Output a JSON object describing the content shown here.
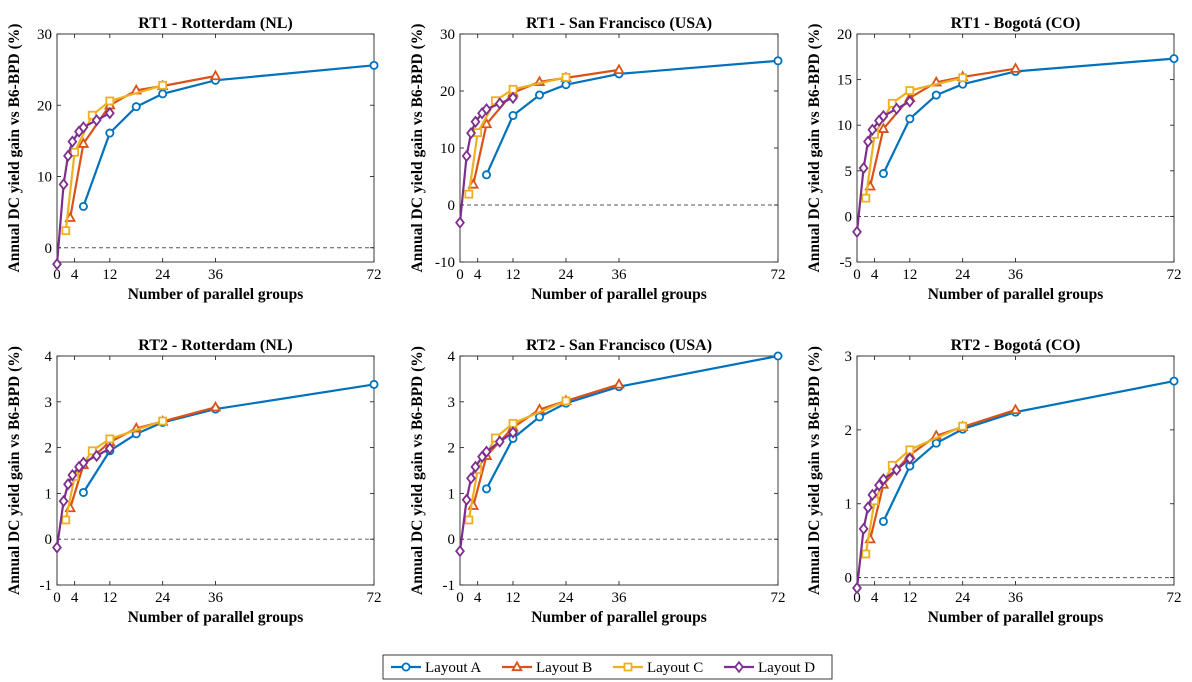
{
  "chart_data": [
    {
      "type": "line",
      "title": "RT1 - Rotterdam (NL)",
      "xlabel": "Number of parallel groups",
      "ylabel": "Annual DC yield gain vs B6-BPD (%)",
      "xlim": [
        0,
        72
      ],
      "ylim": [
        -2,
        30
      ],
      "xticks": [
        0,
        4,
        12,
        24,
        36,
        72
      ],
      "yticks": [
        0,
        10,
        20,
        30
      ],
      "series": [
        {
          "name": "Layout A",
          "x": [
            6,
            12,
            18,
            24,
            36,
            72
          ],
          "y": [
            5.8,
            16.1,
            19.8,
            21.6,
            23.5,
            25.6
          ]
        },
        {
          "name": "Layout B",
          "x": [
            3,
            6,
            12,
            18,
            24,
            36
          ],
          "y": [
            4.2,
            14.6,
            20.0,
            22.1,
            22.7,
            24.1
          ]
        },
        {
          "name": "Layout C",
          "x": [
            2,
            4,
            8,
            12,
            24
          ],
          "y": [
            2.4,
            13.4,
            18.6,
            20.6,
            22.8
          ]
        },
        {
          "name": "Layout D",
          "x": [
            0,
            1.5,
            2.5,
            3.5,
            5,
            6,
            9,
            12
          ],
          "y": [
            -2.3,
            8.9,
            12.9,
            14.9,
            16.3,
            16.9,
            17.9,
            18.9
          ]
        }
      ]
    },
    {
      "type": "line",
      "title": "RT1 - San Francisco (USA)",
      "xlabel": "Number of parallel groups",
      "ylabel": "Annual DC yield gain vs B6-BPD (%)",
      "xlim": [
        0,
        72
      ],
      "ylim": [
        -10,
        30
      ],
      "xticks": [
        0,
        4,
        12,
        24,
        36,
        72
      ],
      "yticks": [
        -10,
        0,
        10,
        20,
        30
      ],
      "series": [
        {
          "name": "Layout A",
          "x": [
            6,
            12,
            18,
            24,
            36,
            72
          ],
          "y": [
            5.3,
            15.7,
            19.3,
            21.1,
            23.0,
            25.3
          ]
        },
        {
          "name": "Layout B",
          "x": [
            3,
            6,
            12,
            18,
            24,
            36
          ],
          "y": [
            3.6,
            14.2,
            19.7,
            21.6,
            22.3,
            23.7
          ]
        },
        {
          "name": "Layout C",
          "x": [
            2,
            4,
            8,
            12,
            24
          ],
          "y": [
            1.9,
            12.7,
            18.3,
            20.3,
            22.4
          ]
        },
        {
          "name": "Layout D",
          "x": [
            0,
            1.5,
            2.5,
            3.5,
            5,
            6,
            9,
            12
          ],
          "y": [
            -3.1,
            8.6,
            12.6,
            14.6,
            16.1,
            16.8,
            17.8,
            18.8
          ]
        }
      ]
    },
    {
      "type": "line",
      "title": "RT1 - Bogotá (CO)",
      "xlabel": "Number of parallel groups",
      "ylabel": "Annual DC yield gain vs B6-BPD (%)",
      "xlim": [
        0,
        72
      ],
      "ylim": [
        -5,
        20
      ],
      "xticks": [
        0,
        4,
        12,
        24,
        36,
        72
      ],
      "yticks": [
        -5,
        0,
        5,
        10,
        15,
        20
      ],
      "series": [
        {
          "name": "Layout A",
          "x": [
            6,
            12,
            18,
            24,
            36,
            72
          ],
          "y": [
            4.7,
            10.7,
            13.3,
            14.5,
            15.9,
            17.3
          ]
        },
        {
          "name": "Layout B",
          "x": [
            3,
            6,
            12,
            18,
            24,
            36
          ],
          "y": [
            3.3,
            9.6,
            13.0,
            14.7,
            15.3,
            16.2
          ]
        },
        {
          "name": "Layout C",
          "x": [
            2,
            4,
            8,
            12,
            24
          ],
          "y": [
            2.0,
            9.0,
            12.4,
            13.8,
            15.2
          ]
        },
        {
          "name": "Layout D",
          "x": [
            0,
            1.5,
            2.5,
            3.5,
            5,
            6,
            9,
            12
          ],
          "y": [
            -1.7,
            5.3,
            8.2,
            9.5,
            10.5,
            11.0,
            11.8,
            12.6
          ]
        }
      ]
    },
    {
      "type": "line",
      "title": "RT2 - Rotterdam (NL)",
      "xlabel": "Number of parallel groups",
      "ylabel": "Annual DC yield gain vs B6-BPD (%)",
      "xlim": [
        0,
        72
      ],
      "ylim": [
        -1,
        4
      ],
      "xticks": [
        0,
        4,
        12,
        24,
        36,
        72
      ],
      "yticks": [
        -1,
        0,
        1,
        2,
        3,
        4
      ],
      "series": [
        {
          "name": "Layout A",
          "x": [
            6,
            12,
            18,
            24,
            36,
            72
          ],
          "y": [
            1.02,
            1.93,
            2.3,
            2.55,
            2.84,
            3.38
          ]
        },
        {
          "name": "Layout B",
          "x": [
            3,
            6,
            12,
            18,
            24,
            36
          ],
          "y": [
            0.68,
            1.62,
            2.12,
            2.42,
            2.57,
            2.88
          ]
        },
        {
          "name": "Layout C",
          "x": [
            2,
            4,
            8,
            12,
            24
          ],
          "y": [
            0.42,
            1.37,
            1.93,
            2.19,
            2.58
          ]
        },
        {
          "name": "Layout D",
          "x": [
            0,
            1.5,
            2.5,
            3.5,
            5,
            6,
            9,
            12
          ],
          "y": [
            -0.18,
            0.83,
            1.2,
            1.4,
            1.58,
            1.67,
            1.82,
            1.98
          ]
        }
      ]
    },
    {
      "type": "line",
      "title": "RT2 - San Francisco (USA)",
      "xlabel": "Number of parallel groups",
      "ylabel": "Annual DC yield gain vs B6-BPD (%)",
      "xlim": [
        0,
        72
      ],
      "ylim": [
        -1,
        4
      ],
      "xticks": [
        0,
        4,
        12,
        24,
        36,
        72
      ],
      "yticks": [
        -1,
        0,
        1,
        2,
        3,
        4
      ],
      "series": [
        {
          "name": "Layout A",
          "x": [
            6,
            12,
            18,
            24,
            36,
            72
          ],
          "y": [
            1.1,
            2.2,
            2.67,
            2.97,
            3.33,
            4.0
          ]
        },
        {
          "name": "Layout B",
          "x": [
            3,
            6,
            12,
            18,
            24,
            36
          ],
          "y": [
            0.73,
            1.82,
            2.44,
            2.83,
            3.02,
            3.38
          ]
        },
        {
          "name": "Layout C",
          "x": [
            2,
            4,
            8,
            12,
            24
          ],
          "y": [
            0.42,
            1.52,
            2.21,
            2.53,
            3.02
          ]
        },
        {
          "name": "Layout D",
          "x": [
            0,
            1.5,
            2.5,
            3.5,
            5,
            6,
            9,
            12
          ],
          "y": [
            -0.26,
            0.86,
            1.33,
            1.58,
            1.8,
            1.91,
            2.13,
            2.33
          ]
        }
      ]
    },
    {
      "type": "line",
      "title": "RT2 - Bogotá (CO)",
      "xlabel": "Number of parallel groups",
      "ylabel": "Annual DC yield gain vs B6-BPD (%)",
      "xlim": [
        0,
        72
      ],
      "ylim": [
        -0.1,
        3
      ],
      "xticks": [
        0,
        4,
        12,
        24,
        36,
        72
      ],
      "yticks": [
        0,
        1,
        2,
        3
      ],
      "series": [
        {
          "name": "Layout A",
          "x": [
            6,
            12,
            18,
            24,
            36,
            72
          ],
          "y": [
            0.76,
            1.51,
            1.82,
            2.01,
            2.24,
            2.66
          ]
        },
        {
          "name": "Layout B",
          "x": [
            3,
            6,
            12,
            18,
            24,
            36
          ],
          "y": [
            0.52,
            1.26,
            1.66,
            1.92,
            2.04,
            2.27
          ]
        },
        {
          "name": "Layout C",
          "x": [
            2,
            4,
            8,
            12,
            24
          ],
          "y": [
            0.32,
            1.04,
            1.52,
            1.73,
            2.05
          ]
        },
        {
          "name": "Layout D",
          "x": [
            0,
            1.5,
            2.5,
            3.5,
            5,
            6,
            9,
            12
          ],
          "y": [
            -0.14,
            0.66,
            0.95,
            1.12,
            1.25,
            1.33,
            1.46,
            1.61
          ]
        }
      ]
    }
  ],
  "legend": {
    "placement": "bottom-center",
    "items": [
      {
        "label": "Layout A",
        "color": "#0072BD",
        "marker": "circle"
      },
      {
        "label": "Layout B",
        "color": "#D95319",
        "marker": "triangle"
      },
      {
        "label": "Layout C",
        "color": "#EDB120",
        "marker": "square"
      },
      {
        "label": "Layout D",
        "color": "#7E2F8E",
        "marker": "diamond"
      }
    ]
  },
  "style": {
    "zero_line": "dashed",
    "grid": false
  }
}
